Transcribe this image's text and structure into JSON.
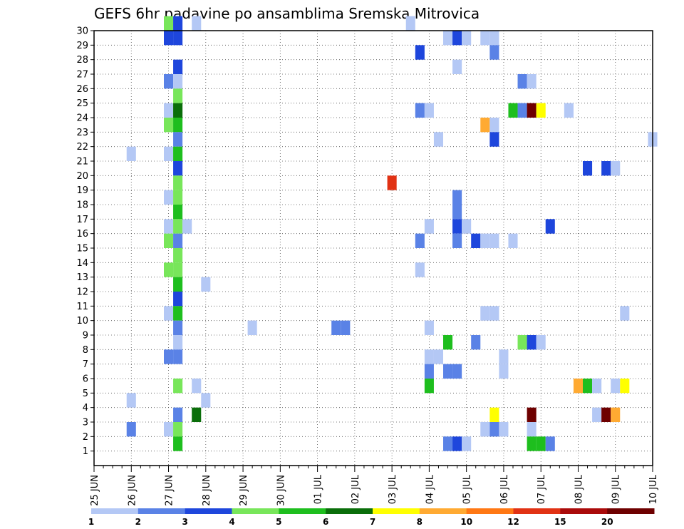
{
  "chart_data": {
    "type": "heatmap",
    "title": "GEFS 6hr padavine po ansamblima Sremska Mitrovica",
    "y_ticks": [
      "1",
      "2",
      "3",
      "4",
      "5",
      "6",
      "7",
      "8",
      "9",
      "10",
      "11",
      "12",
      "13",
      "14",
      "15",
      "16",
      "17",
      "18",
      "19",
      "20",
      "21",
      "22",
      "23",
      "24",
      "25",
      "26",
      "27",
      "28",
      "29",
      "30"
    ],
    "x_ticks": [
      "25 JUN",
      "26 JUN",
      "27 JUN",
      "28 JUN",
      "29 JUN",
      "30 JUN",
      "01 JUL",
      "02 JUL",
      "03 JUL",
      "04 JUL",
      "05 JUL",
      "06 JUL",
      "07 JUL",
      "08 JUL",
      "09 JUL",
      "10 JUL"
    ],
    "x_unit": "6-hour step from 25 JUN 00Z",
    "xlim": [
      0,
      60
    ],
    "ylim": [
      0,
      30
    ],
    "grid": true,
    "legend": {
      "placement": "bottom",
      "colors": [
        "#b4c8f5",
        "#5a82e6",
        "#1e46dc",
        "#78e65a",
        "#1ebe1e",
        "#0a6e0a",
        "#ffff00",
        "#ffaa32",
        "#ff7814",
        "#e13214",
        "#aa0a0a",
        "#6e0000"
      ],
      "labels": [
        "1",
        "2",
        "3",
        "4",
        "5",
        "6",
        "7",
        "8",
        "10",
        "12",
        "15",
        "20"
      ]
    },
    "cells": [
      [
        8,
        30,
        "#78e65a"
      ],
      [
        9,
        30,
        "#1e46dc"
      ],
      [
        11,
        30,
        "#b4c8f5"
      ],
      [
        34,
        30,
        "#b4c8f5"
      ],
      [
        8,
        29,
        "#1e46dc"
      ],
      [
        9,
        29,
        "#1e46dc"
      ],
      [
        38,
        29,
        "#b4c8f5"
      ],
      [
        39,
        29,
        "#1e46dc"
      ],
      [
        40,
        29,
        "#b4c8f5"
      ],
      [
        42,
        29,
        "#b4c8f5"
      ],
      [
        43,
        29,
        "#b4c8f5"
      ],
      [
        35,
        28,
        "#1e46dc"
      ],
      [
        43,
        28,
        "#5a82e6"
      ],
      [
        9,
        27,
        "#1e46dc"
      ],
      [
        39,
        27,
        "#b4c8f5"
      ],
      [
        8,
        26,
        "#5a82e6"
      ],
      [
        9,
        26,
        "#b4c8f5"
      ],
      [
        46,
        26,
        "#5a82e6"
      ],
      [
        47,
        26,
        "#b4c8f5"
      ],
      [
        9,
        25,
        "#78e65a"
      ],
      [
        8,
        24,
        "#b4c8f5"
      ],
      [
        9,
        24,
        "#0a6e0a"
      ],
      [
        35,
        24,
        "#5a82e6"
      ],
      [
        36,
        24,
        "#b4c8f5"
      ],
      [
        45,
        24,
        "#1ebe1e"
      ],
      [
        46,
        24,
        "#5a82e6"
      ],
      [
        47,
        24,
        "#6e0000"
      ],
      [
        48,
        24,
        "#ffff00"
      ],
      [
        51,
        24,
        "#b4c8f5"
      ],
      [
        8,
        23,
        "#78e65a"
      ],
      [
        9,
        23,
        "#1ebe1e"
      ],
      [
        42,
        23,
        "#ffaa32"
      ],
      [
        43,
        23,
        "#b4c8f5"
      ],
      [
        9,
        22,
        "#5a82e6"
      ],
      [
        37,
        22,
        "#b4c8f5"
      ],
      [
        43,
        22,
        "#1e46dc"
      ],
      [
        60,
        22,
        "#b4c8f5"
      ],
      [
        4,
        21,
        "#b4c8f5"
      ],
      [
        8,
        21,
        "#b4c8f5"
      ],
      [
        9,
        21,
        "#1ebe1e"
      ],
      [
        9,
        20,
        "#1e46dc"
      ],
      [
        53,
        20,
        "#1e46dc"
      ],
      [
        55,
        20,
        "#1e46dc"
      ],
      [
        56,
        20,
        "#b4c8f5"
      ],
      [
        9,
        19,
        "#78e65a"
      ],
      [
        32,
        19,
        "#e13214"
      ],
      [
        8,
        18,
        "#b4c8f5"
      ],
      [
        9,
        18,
        "#78e65a"
      ],
      [
        39,
        18,
        "#5a82e6"
      ],
      [
        9,
        17,
        "#1ebe1e"
      ],
      [
        39,
        17,
        "#5a82e6"
      ],
      [
        8,
        16,
        "#b4c8f5"
      ],
      [
        9,
        16,
        "#78e65a"
      ],
      [
        10,
        16,
        "#b4c8f5"
      ],
      [
        36,
        16,
        "#b4c8f5"
      ],
      [
        39,
        16,
        "#1e46dc"
      ],
      [
        40,
        16,
        "#b4c8f5"
      ],
      [
        49,
        16,
        "#1e46dc"
      ],
      [
        8,
        15,
        "#78e65a"
      ],
      [
        9,
        15,
        "#5a82e6"
      ],
      [
        35,
        15,
        "#5a82e6"
      ],
      [
        39,
        15,
        "#5a82e6"
      ],
      [
        41,
        15,
        "#1e46dc"
      ],
      [
        42,
        15,
        "#b4c8f5"
      ],
      [
        43,
        15,
        "#b4c8f5"
      ],
      [
        45,
        15,
        "#b4c8f5"
      ],
      [
        9,
        14,
        "#78e65a"
      ],
      [
        8,
        13,
        "#78e65a"
      ],
      [
        9,
        13,
        "#78e65a"
      ],
      [
        35,
        13,
        "#b4c8f5"
      ],
      [
        9,
        12,
        "#1ebe1e"
      ],
      [
        12,
        12,
        "#b4c8f5"
      ],
      [
        9,
        11,
        "#1e46dc"
      ],
      [
        8,
        10,
        "#b4c8f5"
      ],
      [
        9,
        10,
        "#1ebe1e"
      ],
      [
        42,
        10,
        "#b4c8f5"
      ],
      [
        43,
        10,
        "#b4c8f5"
      ],
      [
        57,
        10,
        "#b4c8f5"
      ],
      [
        9,
        9,
        "#5a82e6"
      ],
      [
        17,
        9,
        "#b4c8f5"
      ],
      [
        26,
        9,
        "#5a82e6"
      ],
      [
        27,
        9,
        "#5a82e6"
      ],
      [
        36,
        9,
        "#b4c8f5"
      ],
      [
        9,
        8,
        "#b4c8f5"
      ],
      [
        38,
        8,
        "#1ebe1e"
      ],
      [
        41,
        8,
        "#5a82e6"
      ],
      [
        46,
        8,
        "#78e65a"
      ],
      [
        47,
        8,
        "#1e46dc"
      ],
      [
        48,
        8,
        "#b4c8f5"
      ],
      [
        8,
        7,
        "#5a82e6"
      ],
      [
        9,
        7,
        "#5a82e6"
      ],
      [
        36,
        7,
        "#b4c8f5"
      ],
      [
        37,
        7,
        "#b4c8f5"
      ],
      [
        44,
        7,
        "#b4c8f5"
      ],
      [
        36,
        6,
        "#5a82e6"
      ],
      [
        38,
        6,
        "#5a82e6"
      ],
      [
        39,
        6,
        "#5a82e6"
      ],
      [
        44,
        6,
        "#b4c8f5"
      ],
      [
        9,
        5,
        "#78e65a"
      ],
      [
        11,
        5,
        "#b4c8f5"
      ],
      [
        36,
        5,
        "#1ebe1e"
      ],
      [
        52,
        5,
        "#ffaa32"
      ],
      [
        53,
        5,
        "#1ebe1e"
      ],
      [
        54,
        5,
        "#b4c8f5"
      ],
      [
        56,
        5,
        "#b4c8f5"
      ],
      [
        57,
        5,
        "#ffff00"
      ],
      [
        4,
        4,
        "#b4c8f5"
      ],
      [
        12,
        4,
        "#b4c8f5"
      ],
      [
        9,
        3,
        "#5a82e6"
      ],
      [
        11,
        3,
        "#0a6e0a"
      ],
      [
        43,
        3,
        "#ffff00"
      ],
      [
        47,
        3,
        "#6e0000"
      ],
      [
        54,
        3,
        "#b4c8f5"
      ],
      [
        55,
        3,
        "#6e0000"
      ],
      [
        56,
        3,
        "#ffaa32"
      ],
      [
        4,
        2,
        "#5a82e6"
      ],
      [
        8,
        2,
        "#b4c8f5"
      ],
      [
        9,
        2,
        "#78e65a"
      ],
      [
        42,
        2,
        "#b4c8f5"
      ],
      [
        43,
        2,
        "#5a82e6"
      ],
      [
        44,
        2,
        "#b4c8f5"
      ],
      [
        47,
        2,
        "#b4c8f5"
      ],
      [
        9,
        1,
        "#1ebe1e"
      ],
      [
        38,
        1,
        "#5a82e6"
      ],
      [
        39,
        1,
        "#1e46dc"
      ],
      [
        40,
        1,
        "#b4c8f5"
      ],
      [
        47,
        1,
        "#1ebe1e"
      ],
      [
        48,
        1,
        "#1ebe1e"
      ],
      [
        49,
        1,
        "#5a82e6"
      ]
    ]
  }
}
